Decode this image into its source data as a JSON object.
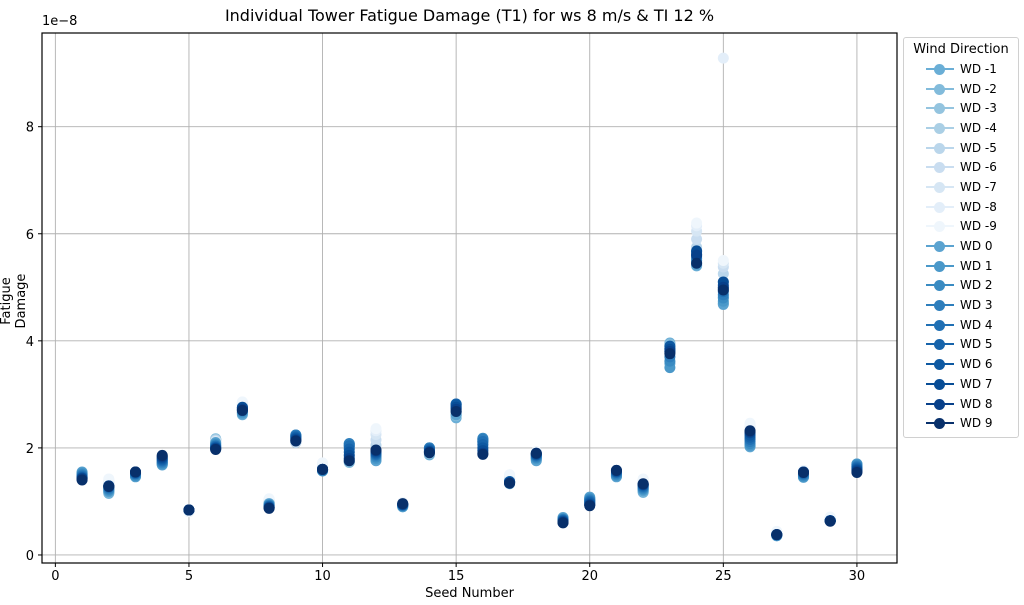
{
  "chart_data": {
    "type": "scatter",
    "title": "Individual Tower Fatigue Damage (T1) for ws 8 m/s & TI 12 %",
    "xlabel": "Seed Number",
    "ylabel": "Fatigue Damage",
    "y_offset_text": "1e−8",
    "y_scale": 1e-08,
    "xlim": [
      -0.5,
      31.5
    ],
    "ylim": [
      -0.15,
      9.75
    ],
    "xticks": [
      0,
      5,
      10,
      15,
      20,
      25,
      30
    ],
    "yticks": [
      0,
      2,
      4,
      6,
      8
    ],
    "grid": true,
    "legend_title": "Wind Direction",
    "legend_position": "outside right, upper",
    "x": [
      1,
      2,
      3,
      4,
      5,
      6,
      7,
      8,
      9,
      10,
      11,
      12,
      13,
      14,
      15,
      16,
      17,
      18,
      19,
      20,
      21,
      22,
      23,
      24,
      25,
      26,
      27,
      28,
      29,
      30
    ],
    "series": [
      {
        "name": "WD -1",
        "color": "#6aaed6",
        "values": [
          1.52,
          1.15,
          1.47,
          1.69,
          0.83,
          2.15,
          2.62,
          0.98,
          2.12,
          1.57,
          1.73,
          1.78,
          0.9,
          1.87,
          2.56,
          2.1,
          1.33,
          1.78,
          0.66,
          1.05,
          1.47,
          1.17,
          3.96,
          5.4,
          4.7,
          2.02,
          0.36,
          1.46,
          0.64,
          1.69
        ]
      },
      {
        "name": "WD -2",
        "color": "#82bbdb",
        "values": [
          1.5,
          1.17,
          1.48,
          1.71,
          0.83,
          2.17,
          2.66,
          0.97,
          2.12,
          1.58,
          1.74,
          1.81,
          0.91,
          1.89,
          2.6,
          2.12,
          1.35,
          1.8,
          0.66,
          1.03,
          1.48,
          1.19,
          3.94,
          5.44,
          4.82,
          2.04,
          0.37,
          1.47,
          0.64,
          1.68
        ]
      },
      {
        "name": "WD -3",
        "color": "#94c4df",
        "values": [
          1.48,
          1.2,
          1.49,
          1.72,
          0.82,
          2.16,
          2.7,
          0.99,
          2.11,
          1.6,
          1.76,
          1.85,
          0.92,
          1.9,
          2.62,
          2.13,
          1.38,
          1.82,
          0.65,
          1.02,
          1.49,
          1.22,
          3.9,
          5.5,
          4.95,
          2.06,
          0.38,
          1.48,
          0.65,
          1.67
        ]
      },
      {
        "name": "WD -4",
        "color": "#aacfe5",
        "values": [
          1.46,
          1.24,
          1.5,
          1.74,
          0.82,
          2.15,
          2.76,
          1.0,
          2.1,
          1.62,
          1.78,
          1.95,
          0.93,
          1.91,
          2.64,
          2.12,
          1.4,
          1.84,
          0.64,
          1.0,
          1.5,
          1.26,
          3.86,
          5.62,
          5.1,
          2.12,
          0.39,
          1.5,
          0.66,
          1.66
        ]
      },
      {
        "name": "WD -5",
        "color": "#bad6eb",
        "values": [
          1.44,
          1.28,
          1.52,
          1.75,
          0.82,
          2.14,
          2.8,
          1.01,
          2.1,
          1.64,
          1.8,
          2.05,
          0.94,
          1.92,
          2.66,
          2.1,
          1.42,
          1.86,
          0.63,
          0.98,
          1.51,
          1.3,
          3.82,
          5.75,
          5.25,
          2.18,
          0.4,
          1.52,
          0.67,
          1.65
        ]
      },
      {
        "name": "WD -6",
        "color": "#c9ddf0",
        "values": [
          1.43,
          1.32,
          1.53,
          1.76,
          0.82,
          2.13,
          2.82,
          1.02,
          2.11,
          1.66,
          1.82,
          2.15,
          0.95,
          1.93,
          2.68,
          2.08,
          1.44,
          1.88,
          0.63,
          0.97,
          1.52,
          1.34,
          3.8,
          5.9,
          5.38,
          2.25,
          0.41,
          1.54,
          0.68,
          1.64
        ]
      },
      {
        "name": "WD -7",
        "color": "#d6e6f4",
        "values": [
          1.42,
          1.36,
          1.54,
          1.77,
          0.81,
          2.12,
          2.84,
          1.03,
          2.12,
          1.68,
          1.84,
          2.25,
          0.96,
          1.94,
          2.7,
          2.06,
          1.46,
          1.9,
          0.62,
          0.96,
          1.53,
          1.38,
          3.78,
          6.05,
          5.45,
          2.32,
          0.42,
          1.56,
          0.69,
          1.63
        ]
      },
      {
        "name": "WD -8",
        "color": "#e3eef9",
        "values": [
          1.41,
          1.39,
          1.55,
          1.78,
          0.81,
          2.11,
          2.85,
          1.04,
          2.13,
          1.7,
          1.86,
          2.32,
          0.97,
          1.95,
          2.72,
          2.05,
          1.48,
          1.92,
          0.62,
          0.95,
          1.54,
          1.4,
          3.76,
          6.15,
          9.28,
          2.4,
          0.43,
          1.57,
          0.7,
          1.62
        ]
      },
      {
        "name": "WD -9",
        "color": "#eff6fc",
        "values": [
          1.4,
          1.42,
          1.56,
          1.79,
          0.81,
          2.1,
          2.86,
          1.05,
          2.14,
          1.72,
          1.88,
          2.36,
          0.98,
          1.96,
          2.74,
          2.04,
          1.5,
          1.93,
          0.61,
          0.94,
          1.55,
          1.42,
          3.74,
          6.2,
          5.5,
          2.46,
          0.44,
          1.58,
          0.71,
          1.61
        ]
      },
      {
        "name": "WD 0",
        "color": "#5ba3d0",
        "values": [
          1.55,
          1.18,
          1.46,
          1.68,
          0.84,
          2.1,
          2.64,
          0.96,
          2.2,
          1.57,
          2.02,
          1.76,
          0.9,
          1.98,
          2.62,
          2.12,
          1.36,
          1.76,
          0.7,
          1.08,
          1.46,
          1.2,
          3.58,
          5.42,
          4.68,
          2.03,
          0.36,
          1.45,
          0.64,
          1.7
        ]
      },
      {
        "name": "WD 1",
        "color": "#4a98c9",
        "values": [
          1.53,
          1.2,
          1.47,
          1.7,
          0.84,
          2.08,
          2.66,
          0.94,
          2.22,
          1.57,
          2.05,
          1.8,
          0.91,
          1.99,
          2.68,
          2.16,
          1.36,
          1.8,
          0.68,
          1.06,
          1.48,
          1.22,
          3.5,
          5.46,
          4.74,
          2.05,
          0.37,
          1.46,
          0.64,
          1.7
        ]
      },
      {
        "name": "WD 2",
        "color": "#3a8bc2",
        "values": [
          1.51,
          1.22,
          1.49,
          1.72,
          0.84,
          2.06,
          2.68,
          0.93,
          2.24,
          1.58,
          2.08,
          1.83,
          0.92,
          2.0,
          2.74,
          2.18,
          1.37,
          1.82,
          0.67,
          1.04,
          1.5,
          1.24,
          3.62,
          5.5,
          4.8,
          2.08,
          0.37,
          1.48,
          0.64,
          1.68
        ]
      },
      {
        "name": "WD 3",
        "color": "#2e7ebc",
        "values": [
          1.49,
          1.24,
          1.51,
          1.74,
          0.84,
          2.04,
          2.7,
          0.92,
          2.24,
          1.59,
          2.08,
          1.86,
          0.93,
          2.0,
          2.78,
          2.16,
          1.37,
          1.84,
          0.66,
          1.02,
          1.52,
          1.26,
          3.7,
          5.54,
          4.86,
          2.12,
          0.37,
          1.5,
          0.64,
          1.66
        ]
      },
      {
        "name": "WD 4",
        "color": "#2070b4",
        "values": [
          1.47,
          1.26,
          1.52,
          1.76,
          0.84,
          2.03,
          2.72,
          0.91,
          2.22,
          1.59,
          2.04,
          1.88,
          0.93,
          1.98,
          2.82,
          2.12,
          1.37,
          1.86,
          0.65,
          1.0,
          1.54,
          1.28,
          3.8,
          5.58,
          4.92,
          2.16,
          0.38,
          1.52,
          0.64,
          1.64
        ]
      },
      {
        "name": "WD 5",
        "color": "#1764ab",
        "values": [
          1.45,
          1.27,
          1.53,
          1.78,
          0.84,
          2.01,
          2.74,
          0.9,
          2.2,
          1.6,
          1.98,
          1.9,
          0.94,
          1.96,
          2.82,
          2.06,
          1.37,
          1.87,
          0.64,
          0.98,
          1.55,
          1.3,
          3.86,
          5.62,
          4.98,
          2.2,
          0.38,
          1.53,
          0.64,
          1.62
        ]
      },
      {
        "name": "WD 6",
        "color": "#0e59a2",
        "values": [
          1.44,
          1.28,
          1.54,
          1.8,
          0.84,
          2.0,
          2.75,
          0.89,
          2.18,
          1.6,
          1.92,
          1.92,
          0.94,
          1.94,
          2.8,
          2.0,
          1.36,
          1.88,
          0.63,
          0.96,
          1.56,
          1.31,
          3.9,
          5.66,
          5.04,
          2.24,
          0.38,
          1.54,
          0.64,
          1.6
        ]
      },
      {
        "name": "WD 7",
        "color": "#084d96",
        "values": [
          1.43,
          1.29,
          1.55,
          1.82,
          0.84,
          1.99,
          2.76,
          0.88,
          2.16,
          1.6,
          1.86,
          1.94,
          0.95,
          1.93,
          2.76,
          1.95,
          1.35,
          1.89,
          0.62,
          0.94,
          1.57,
          1.32,
          3.84,
          5.68,
          5.1,
          2.28,
          0.38,
          1.55,
          0.64,
          1.58
        ]
      },
      {
        "name": "WD 8",
        "color": "#08408a",
        "values": [
          1.42,
          1.29,
          1.55,
          1.84,
          0.84,
          1.98,
          2.72,
          0.88,
          2.14,
          1.6,
          1.8,
          1.95,
          0.95,
          1.92,
          2.72,
          1.9,
          1.35,
          1.9,
          0.61,
          0.93,
          1.58,
          1.32,
          3.8,
          5.6,
          5.0,
          2.3,
          0.38,
          1.55,
          0.64,
          1.56
        ]
      },
      {
        "name": "WD 9",
        "color": "#08306b",
        "values": [
          1.4,
          1.28,
          1.55,
          1.86,
          0.84,
          1.97,
          2.7,
          0.87,
          2.13,
          1.6,
          1.76,
          1.96,
          0.96,
          1.91,
          2.68,
          1.88,
          1.34,
          1.9,
          0.6,
          0.92,
          1.58,
          1.33,
          3.76,
          5.45,
          4.95,
          2.32,
          0.38,
          1.54,
          0.63,
          1.54
        ]
      }
    ]
  }
}
